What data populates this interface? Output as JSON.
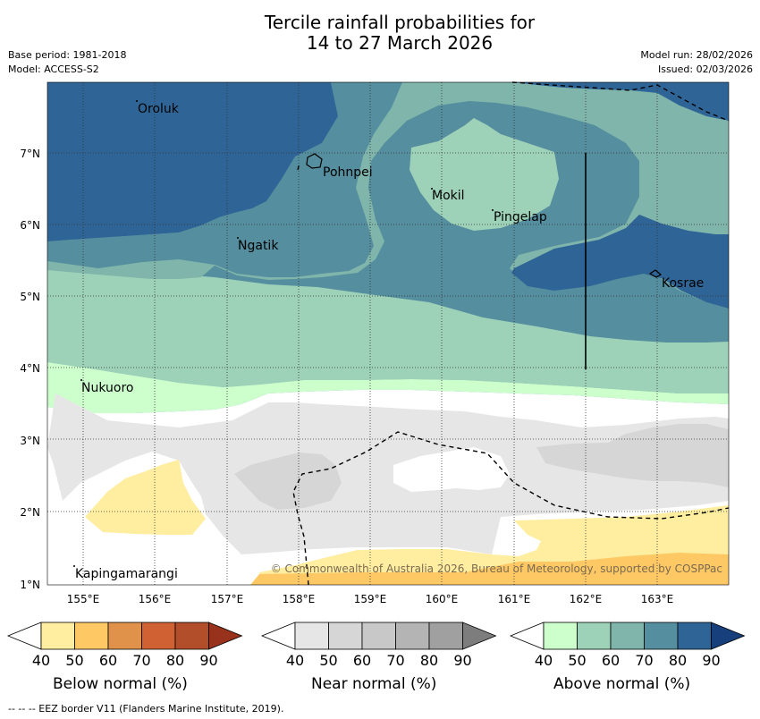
{
  "title_line1": "Tercile rainfall probabilities for",
  "title_line2": "14 to 27 March 2026",
  "base_period": "Base period: 1981-2018",
  "model": "Model: ACCESS-S2",
  "model_run": "Model run: 28/02/2026",
  "issued": "Issued: 02/03/2026",
  "lat_labels": [
    "7°N",
    "6°N",
    "5°N",
    "4°N",
    "3°N",
    "2°N",
    "1°N"
  ],
  "lon_labels": [
    "155°E",
    "156°E",
    "157°E",
    "158°E",
    "159°E",
    "160°E",
    "161°E",
    "162°E",
    "163°E"
  ],
  "places": [
    "Oroluk",
    "Pohnpei",
    "Mokil",
    "Pingelap",
    "Ngatik",
    "Kosrae",
    "Nukuoro",
    "Kapingamarangi"
  ],
  "copyright": "© Commonwealth of Australia 2026, Bureau of Meteorology, supported by COSPPac",
  "colorbars": [
    {
      "label": "Below normal (%)",
      "ticks": [
        "40",
        "50",
        "60",
        "70",
        "80",
        "90"
      ],
      "colors": [
        "#ffffff",
        "#ffeda0",
        "#fec965",
        "#e0924a",
        "#cf6133",
        "#b24e2a",
        "#99321c"
      ]
    },
    {
      "label": "Near normal (%)",
      "ticks": [
        "40",
        "50",
        "60",
        "70",
        "80",
        "90"
      ],
      "colors": [
        "#ffffff",
        "#e6e6e6",
        "#d6d6d6",
        "#c8c8c8",
        "#b4b4b4",
        "#a0a0a0",
        "#7d7d7d"
      ]
    },
    {
      "label": "Above normal (%)",
      "ticks": [
        "40",
        "50",
        "60",
        "70",
        "80",
        "90"
      ],
      "colors": [
        "#ffffff",
        "#ccffcc",
        "#9dd1b8",
        "#7fb5aa",
        "#558e9e",
        "#2f6496",
        "#163f7c"
      ]
    }
  ],
  "footer": "--  --  -- EEZ border V11 (Flanders Marine Institute, 2019)."
}
